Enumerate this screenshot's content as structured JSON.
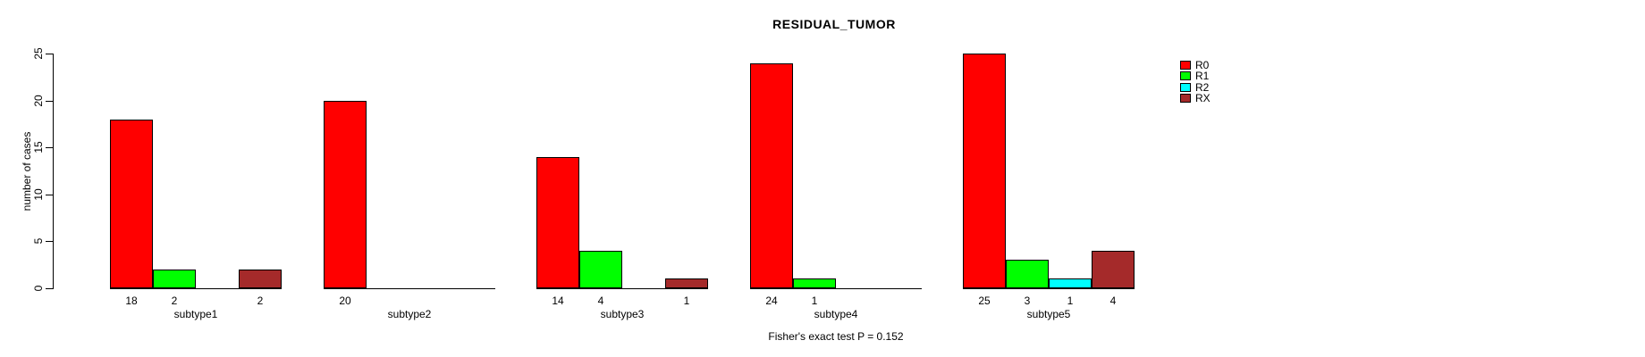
{
  "chart_data": {
    "type": "bar",
    "title": "RESIDUAL_TUMOR",
    "subtitle": "Fisher's exact test P = 0.152",
    "ylabel": "number of cases",
    "xlabel": "",
    "ylim": [
      0,
      25
    ],
    "yticks": [
      0,
      5,
      10,
      15,
      20,
      25
    ],
    "grid": false,
    "legend_position": "right",
    "categories": [
      "subtype1",
      "subtype2",
      "subtype3",
      "subtype4",
      "subtype5"
    ],
    "series": [
      {
        "name": "R0",
        "color": "#ff0000",
        "values": [
          18,
          20,
          14,
          24,
          25
        ]
      },
      {
        "name": "R1",
        "color": "#00ff00",
        "values": [
          2,
          0,
          4,
          1,
          3
        ]
      },
      {
        "name": "R2",
        "color": "#00ffff",
        "values": [
          0,
          0,
          0,
          0,
          1
        ]
      },
      {
        "name": "RX",
        "color": "#a52a2a",
        "values": [
          2,
          0,
          1,
          0,
          4
        ]
      }
    ],
    "bar_value_label_rule": "non-zero counts printed under each bar"
  }
}
